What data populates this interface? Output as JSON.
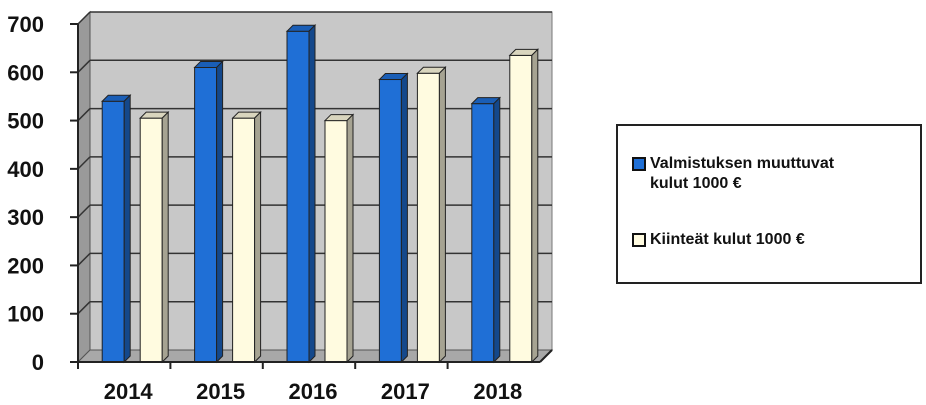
{
  "chart_data": {
    "type": "bar",
    "categories": [
      "2014",
      "2015",
      "2016",
      "2017",
      "2018"
    ],
    "series": [
      {
        "name": "Valmistuksen  muuttuvat\nkulut  1000 €",
        "values": [
          540,
          610,
          685,
          585,
          535
        ],
        "color": "#1f6fd6"
      },
      {
        "name": "Kiinteät  kulut  1000 €",
        "values": [
          505,
          505,
          500,
          598,
          635
        ],
        "color": "#fffbe0"
      }
    ],
    "y_ticks": [
      "0",
      "100",
      "200",
      "300",
      "400",
      "500",
      "600",
      "700"
    ],
    "ylim": [
      0,
      700
    ],
    "grid": true,
    "legend_position": "right",
    "style": "3d-column"
  }
}
